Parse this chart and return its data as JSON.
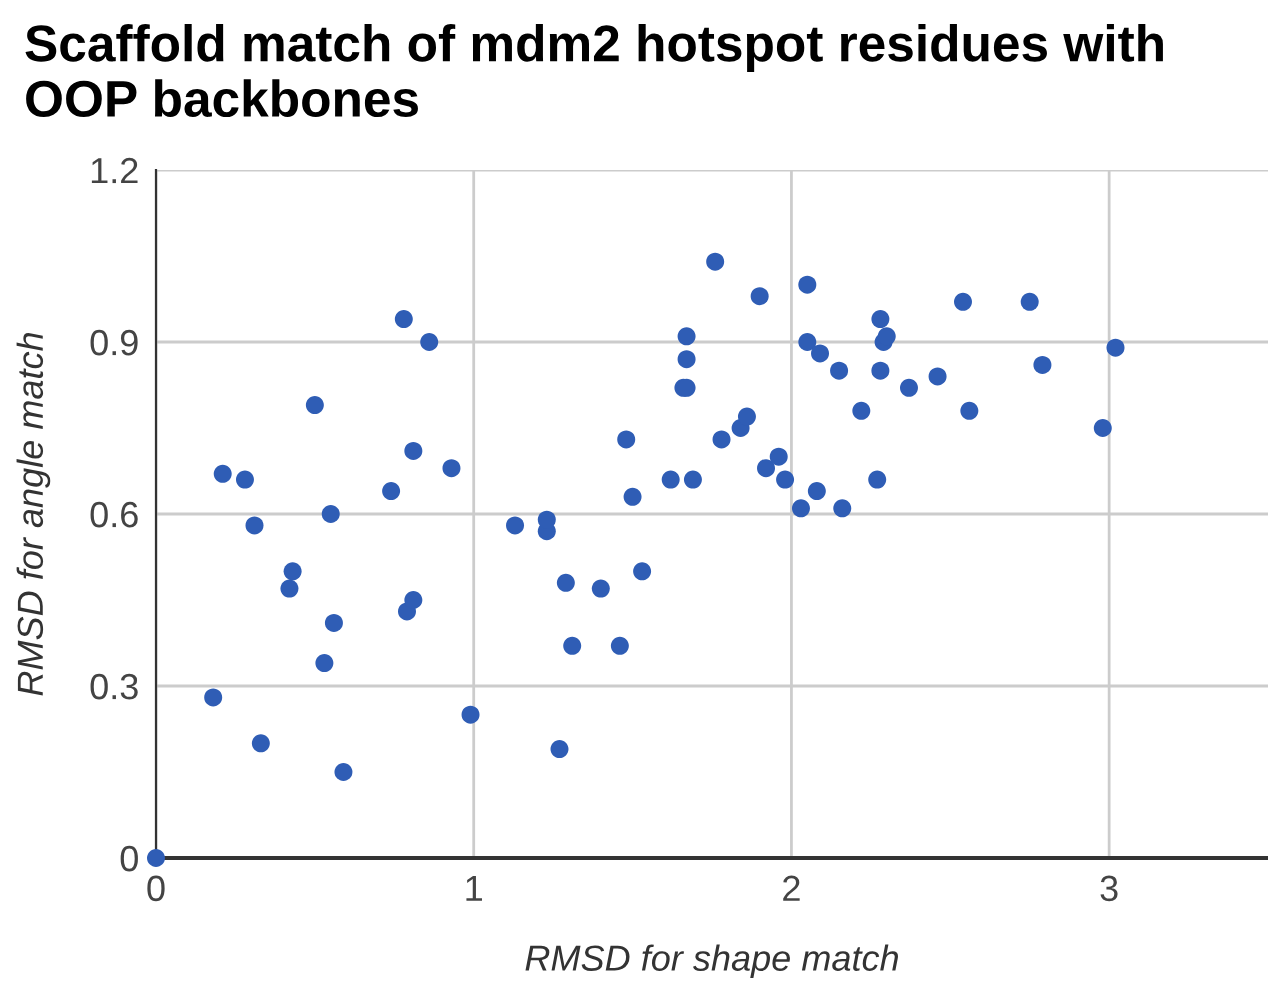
{
  "chart_data": {
    "type": "scatter",
    "title": "Scaffold match of mdm2 hotspot residues with OOP backbones",
    "xlabel": "RMSD for shape match",
    "ylabel": "RMSD for angle match",
    "xlim": [
      0,
      3.5
    ],
    "xticks": [
      0,
      1,
      2,
      3
    ],
    "ylim": [
      0,
      1.2
    ],
    "yticks": [
      0,
      0.3,
      0.6,
      0.9,
      1.2
    ],
    "grid": true,
    "marker": "circle",
    "series": [
      {
        "color": "#2f5db5",
        "x": [
          0,
          0.18,
          0.21,
          0.28,
          0.31,
          0.33,
          0.42,
          0.43,
          0.5,
          0.53,
          0.55,
          0.56,
          0.59,
          0.74,
          0.78,
          0.79,
          0.81,
          0.81,
          0.86,
          0.93,
          0.99,
          1.13,
          1.23,
          1.23,
          1.27,
          1.29,
          1.31,
          1.4,
          1.46,
          1.48,
          1.5,
          1.53,
          1.62,
          1.67,
          1.67,
          1.66,
          1.67,
          1.69,
          1.76,
          1.78,
          1.84,
          1.86,
          1.9,
          1.92,
          1.96,
          1.98,
          2.03,
          2.05,
          2.05,
          2.09,
          2.08,
          2.16,
          2.15,
          2.22,
          2.27,
          2.28,
          2.29,
          2.3,
          2.28,
          2.37,
          2.46,
          2.54,
          2.56,
          2.75,
          2.79,
          2.98,
          3.02
        ],
        "values": [
          0,
          0.28,
          0.67,
          0.66,
          0.58,
          0.2,
          0.47,
          0.5,
          0.79,
          0.34,
          0.6,
          0.41,
          0.15,
          0.64,
          0.94,
          0.43,
          0.45,
          0.71,
          0.9,
          0.68,
          0.25,
          0.58,
          0.57,
          0.59,
          0.19,
          0.48,
          0.37,
          0.47,
          0.37,
          0.73,
          0.63,
          0.5,
          0.66,
          0.87,
          0.91,
          0.82,
          0.82,
          0.66,
          1.04,
          0.73,
          0.75,
          0.77,
          0.98,
          0.68,
          0.7,
          0.66,
          0.61,
          1.0,
          0.9,
          0.88,
          0.64,
          0.61,
          0.85,
          0.78,
          0.66,
          0.94,
          0.9,
          0.91,
          0.85,
          0.82,
          0.84,
          0.97,
          0.78,
          0.97,
          0.86,
          0.75,
          0.89
        ]
      }
    ]
  }
}
